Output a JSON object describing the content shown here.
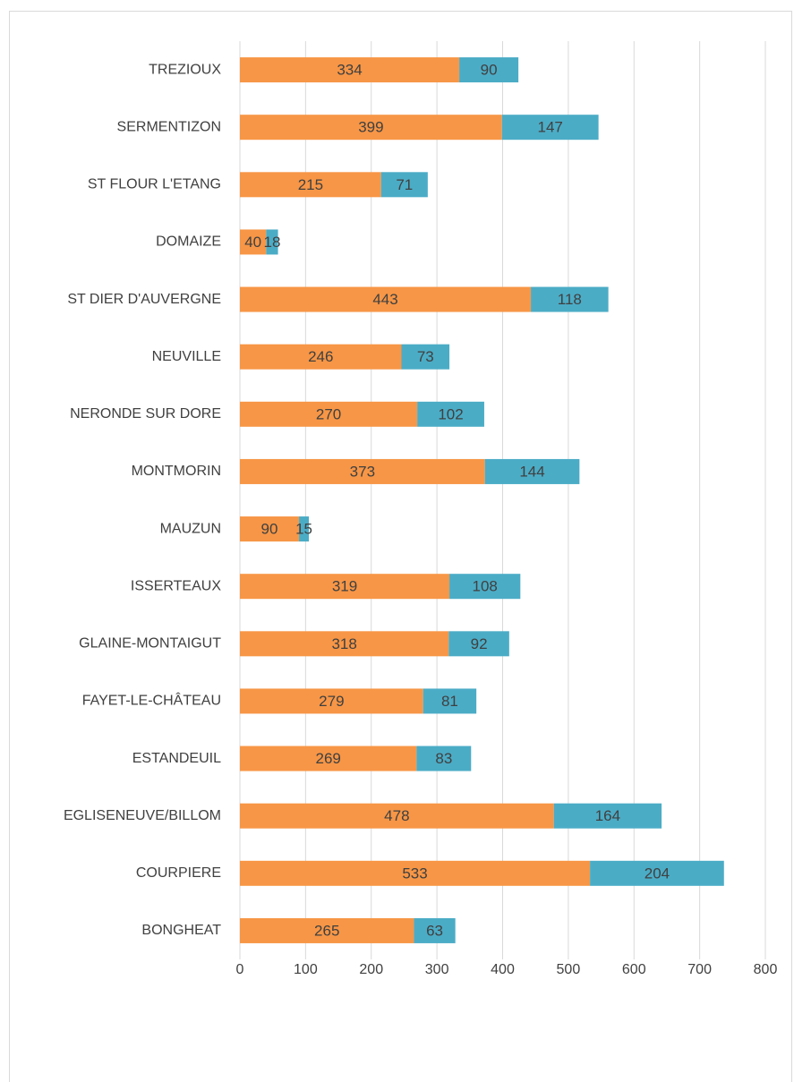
{
  "chart_data": {
    "type": "stacked_barh",
    "categories": [
      "TREZIOUX",
      "SERMENTIZON",
      "ST FLOUR L'ETANG",
      "DOMAIZE",
      "ST DIER D'AUVERGNE",
      "NEUVILLE",
      "NERONDE SUR DORE",
      "MONTMORIN",
      "MAUZUN",
      "ISSERTEAUX",
      "GLAINE-MONTAIGUT",
      "FAYET-LE-CHÂTEAU",
      "ESTANDEUIL",
      "EGLISENEUVE/BILLOM",
      "COURPIERE",
      "BONGHEAT"
    ],
    "series": [
      {
        "color": "#f79646",
        "values": [
          334,
          399,
          215,
          40,
          443,
          246,
          270,
          373,
          90,
          319,
          318,
          279,
          269,
          478,
          533,
          265
        ]
      },
      {
        "color": "#4bacc6",
        "values": [
          90,
          147,
          71,
          18,
          118,
          73,
          102,
          144,
          15,
          108,
          92,
          81,
          83,
          164,
          204,
          63
        ]
      }
    ],
    "xlim": [
      0,
      800
    ],
    "xticks": [
      0,
      100,
      200,
      300,
      400,
      500,
      600,
      700,
      800
    ],
    "grid": true
  }
}
